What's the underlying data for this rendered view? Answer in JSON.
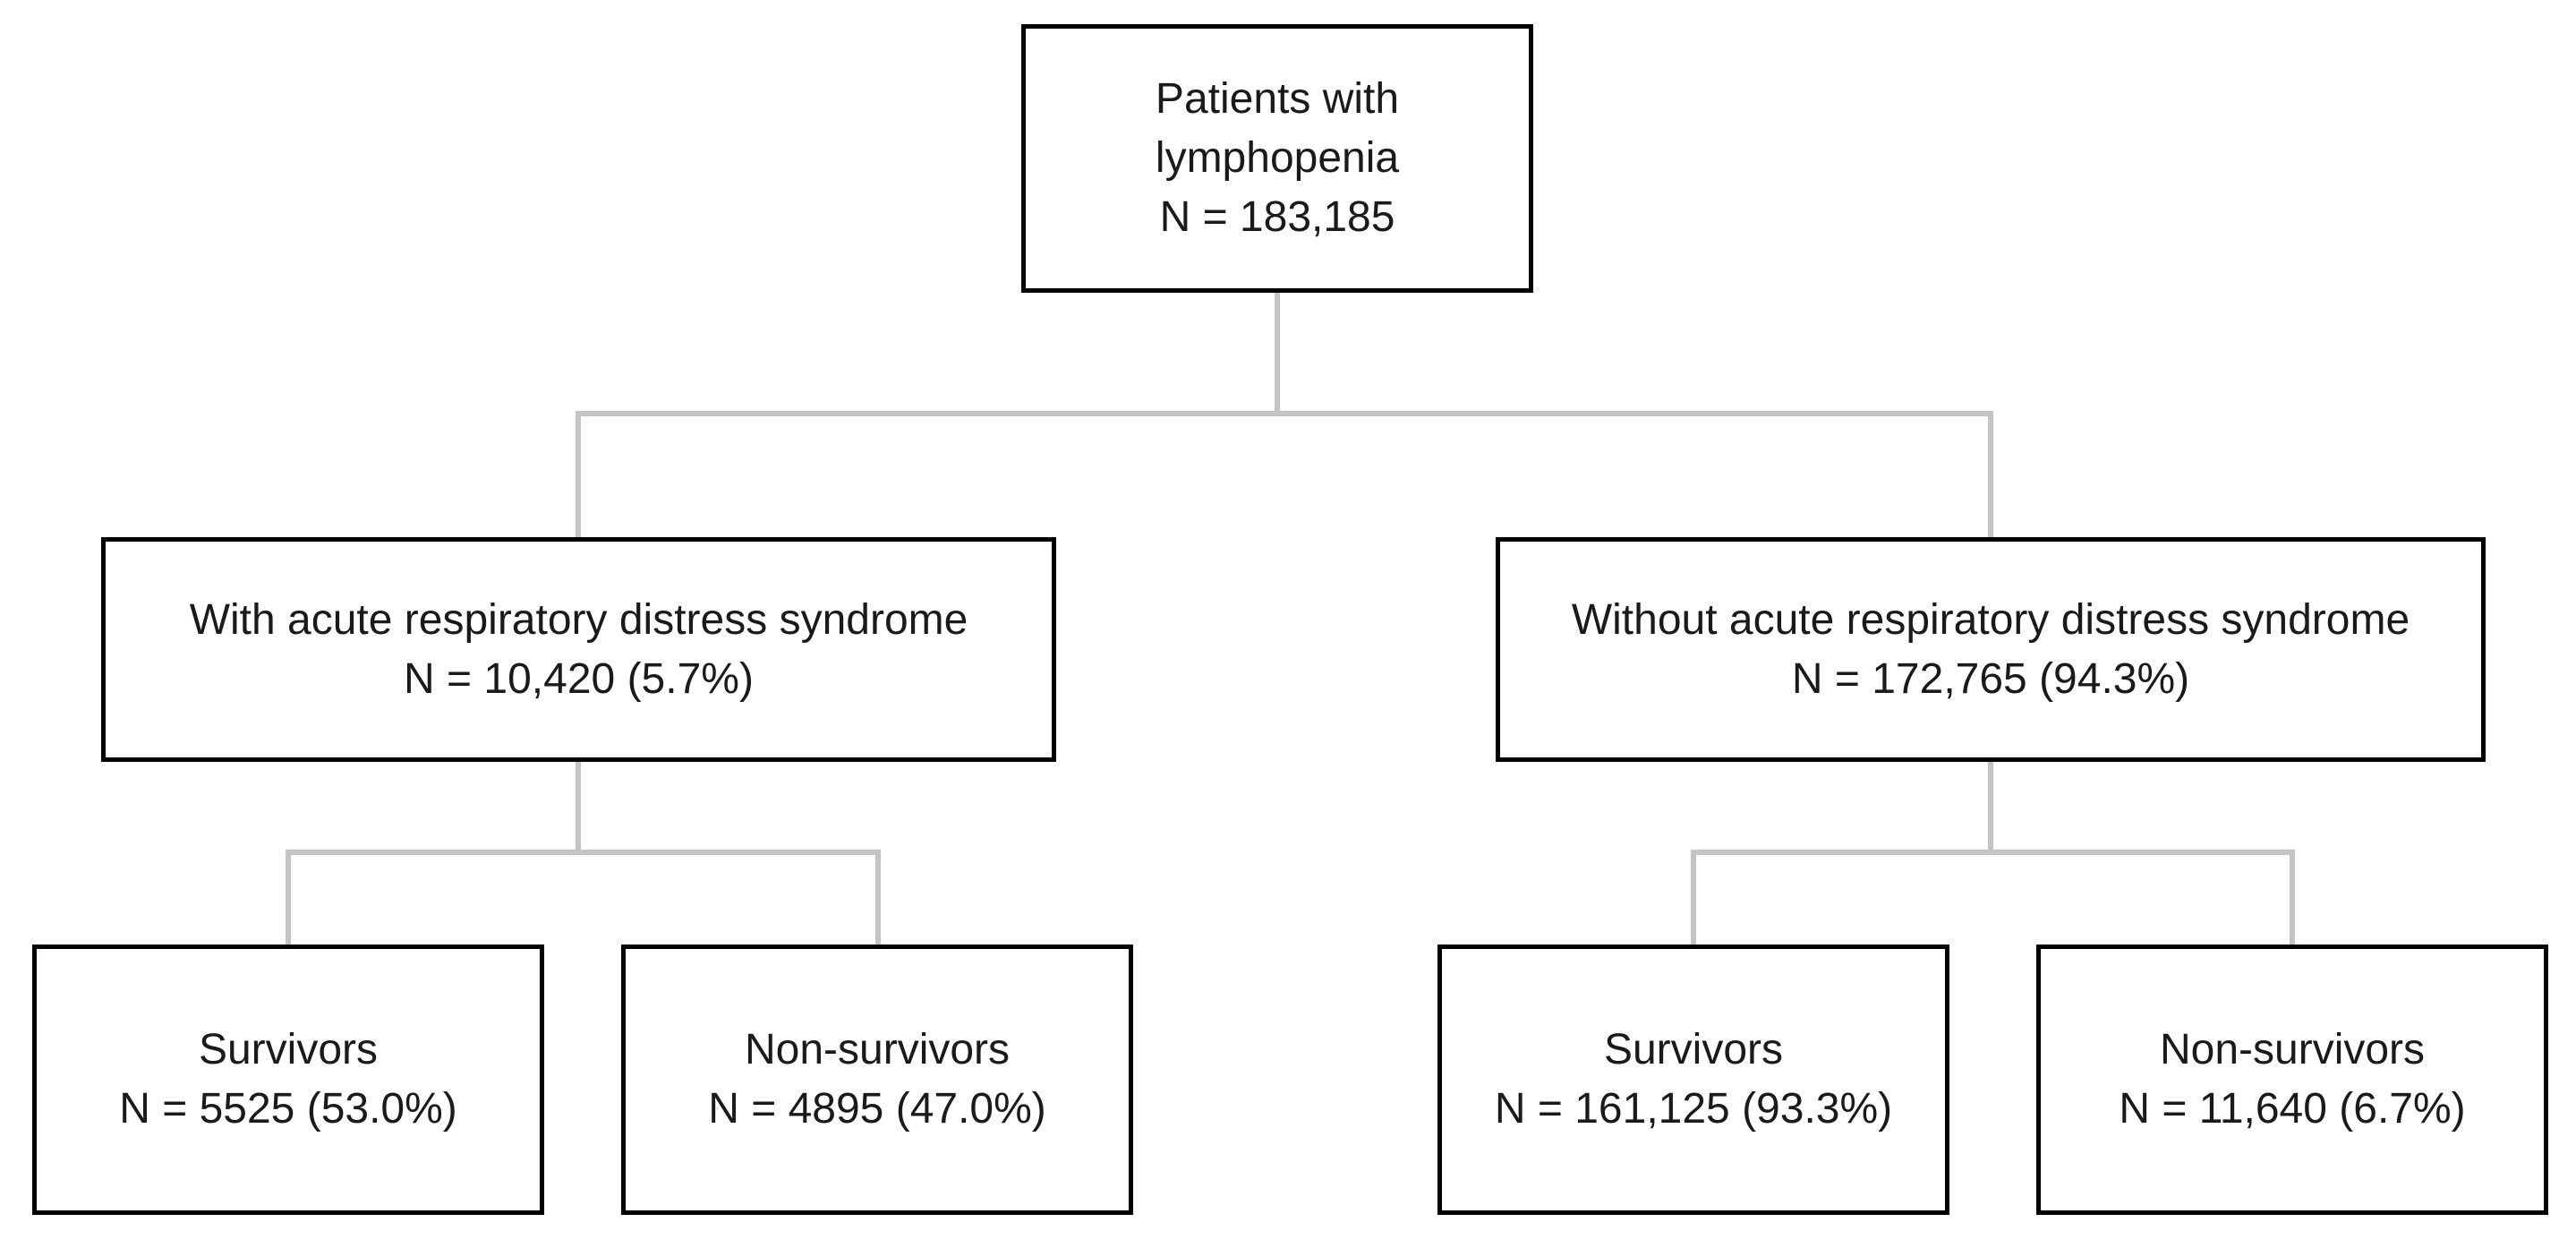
{
  "colors": {
    "box_border": "#000000",
    "connector": "#c4c4c4",
    "text": "#1a1a1a",
    "background": "#ffffff"
  },
  "flowchart": {
    "root": {
      "line1": "Patients with",
      "line2": "lymphopenia",
      "line3": "N = 183,185"
    },
    "with_ards": {
      "line1": "With acute respiratory distress syndrome",
      "line2": "N = 10,420 (5.7%)"
    },
    "without_ards": {
      "line1": "Without acute respiratory distress syndrome",
      "line2": "N = 172,765 (94.3%)"
    },
    "with_ards_survivors": {
      "line1": "Survivors",
      "line2": "N = 5525 (53.0%)"
    },
    "with_ards_non_survivors": {
      "line1": "Non-survivors",
      "line2": "N = 4895 (47.0%)"
    },
    "without_ards_survivors": {
      "line1": "Survivors",
      "line2": "N = 161,125 (93.3%)"
    },
    "without_ards_non_survivors": {
      "line1": "Non-survivors",
      "line2": "N = 11,640 (6.7%)"
    }
  }
}
